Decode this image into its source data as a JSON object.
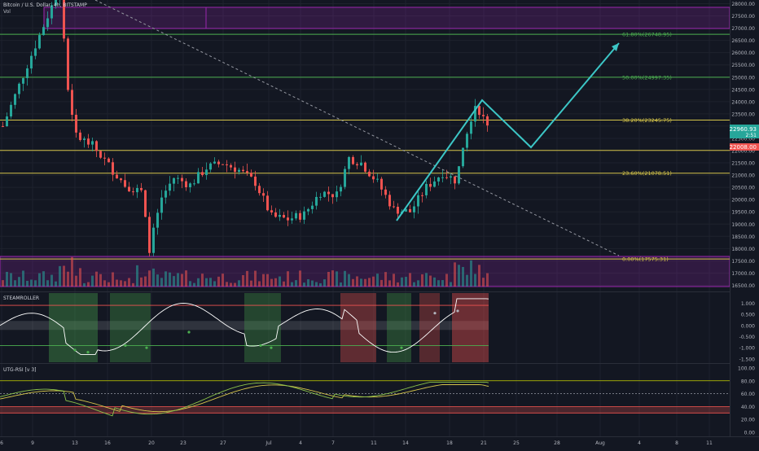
{
  "header": {
    "symbol": "Bitcoin / U.S. Dollar, 4h, BITSTAMP",
    "volume_label": "Vol"
  },
  "colors": {
    "background": "#131722",
    "up": "#26a69a",
    "down": "#ef5350",
    "fib_green": "#4caf50",
    "fib_yellow": "#d4c44a",
    "projection": "#3cc6c6",
    "box": "#9c27b0"
  },
  "current_price": {
    "value": "22960.93",
    "countdown": "2:51"
  },
  "marker_price": {
    "value": "22008.00"
  },
  "chart_data": [
    {
      "type": "candlestick",
      "name": "price",
      "y_ticks": [
        28000,
        27500,
        27000,
        26500,
        26000,
        25500,
        25000,
        24500,
        24000,
        23500,
        23000,
        22500,
        22000,
        21500,
        21000,
        20500,
        20000,
        19500,
        19000,
        18500,
        18000,
        17500,
        17000,
        16500
      ],
      "x_ticks": [
        "6",
        "9",
        "13",
        "16",
        "20",
        "23",
        "27",
        "Jul",
        "4",
        "7",
        "11",
        "14",
        "18",
        "21",
        "25",
        "28",
        "Aug",
        "4",
        "8",
        "11"
      ],
      "ylim": [
        16250,
        28150
      ],
      "fib_levels": [
        {
          "label": "61.80%(26748.95)",
          "value": 26748.95,
          "color": "green"
        },
        {
          "label": "50.00%(24997.35)",
          "value": 24997.35,
          "color": "green"
        },
        {
          "label": "38.20%(23245.75)",
          "value": 23245.75,
          "color": "yellow"
        },
        {
          "label": "23.60%(21078.51)",
          "value": 21078.51,
          "color": "yellow"
        },
        {
          "label": "0.00%(17575.31)",
          "value": 17575.31,
          "color": "yellow"
        }
      ],
      "anchors": [
        {
          "x": 0,
          "y": 23000
        },
        {
          "x": 6,
          "y": 25500
        },
        {
          "x": 14,
          "y": 28700
        },
        {
          "x": 16,
          "y": 24500
        },
        {
          "x": 18,
          "y": 22600
        },
        {
          "x": 22,
          "y": 22200
        },
        {
          "x": 26,
          "y": 21400
        },
        {
          "x": 30,
          "y": 20600
        },
        {
          "x": 34,
          "y": 20300
        },
        {
          "x": 36,
          "y": 18000
        },
        {
          "x": 39,
          "y": 20100
        },
        {
          "x": 42,
          "y": 20900
        },
        {
          "x": 46,
          "y": 20600
        },
        {
          "x": 50,
          "y": 21300
        },
        {
          "x": 54,
          "y": 21500
        },
        {
          "x": 58,
          "y": 21200
        },
        {
          "x": 62,
          "y": 20700
        },
        {
          "x": 66,
          "y": 19300
        },
        {
          "x": 70,
          "y": 19200
        },
        {
          "x": 74,
          "y": 19400
        },
        {
          "x": 78,
          "y": 20300
        },
        {
          "x": 82,
          "y": 20200
        },
        {
          "x": 85,
          "y": 21700
        },
        {
          "x": 88,
          "y": 21500
        },
        {
          "x": 92,
          "y": 20700
        },
        {
          "x": 96,
          "y": 19600
        },
        {
          "x": 100,
          "y": 19500
        },
        {
          "x": 104,
          "y": 20500
        },
        {
          "x": 108,
          "y": 21100
        },
        {
          "x": 111,
          "y": 20800
        },
        {
          "x": 113,
          "y": 22300
        },
        {
          "x": 116,
          "y": 23900
        },
        {
          "x": 118,
          "y": 23300
        },
        {
          "x": 119,
          "y": 22960
        }
      ]
    },
    {
      "type": "line",
      "name": "STEAMROLLER",
      "title": "STEAMROLLER",
      "y_ticks": [
        1.0,
        0.5,
        0.0,
        -0.5,
        -1.0,
        -1.5
      ],
      "ylim": [
        -1.65,
        1.45
      ]
    },
    {
      "type": "line",
      "name": "UTG-RSI [v 3]",
      "title": "UTG-RSI [v 3]",
      "y_ticks": [
        100.0,
        80.0,
        60.0,
        40.0,
        20.0,
        0.0
      ],
      "ylim": [
        -5,
        105
      ],
      "levels": [
        80,
        60,
        40,
        30
      ]
    }
  ]
}
